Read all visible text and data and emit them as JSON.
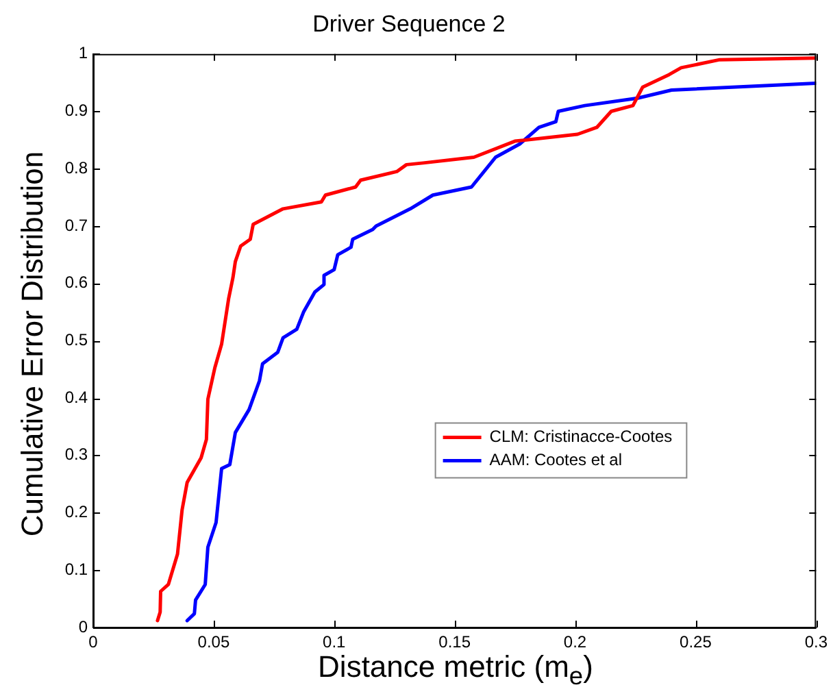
{
  "chart_data": {
    "type": "line",
    "title": "Driver Sequence 2",
    "xlabel": "Distance metric (m$_{e}$)",
    "ylabel": "Cumulative Error Distribution",
    "xlim": [
      0,
      0.3
    ],
    "xticks": [
      0,
      0.05,
      0.1,
      0.15,
      0.2,
      0.25,
      0.3
    ],
    "ylim": [
      0,
      1
    ],
    "yticks": [
      0,
      0.1,
      0.2,
      0.3,
      0.4,
      0.5,
      0.6,
      0.7,
      0.8,
      0.9,
      1
    ],
    "grid": false,
    "legend": "right",
    "marker": "none",
    "line_style": "solid",
    "series": [
      {
        "name": "CLM: Cristinacce-Cootes",
        "color": "#ff0000",
        "x": [
          0.0267,
          0.0278,
          0.028,
          0.0312,
          0.035,
          0.0369,
          0.039,
          0.0448,
          0.047,
          0.0476,
          0.0505,
          0.0533,
          0.0562,
          0.058,
          0.059,
          0.0612,
          0.0652,
          0.0664,
          0.0788,
          0.0947,
          0.0964,
          0.1089,
          0.111,
          0.126,
          0.13,
          0.137,
          0.158,
          0.175,
          0.201,
          0.209,
          0.215,
          0.224,
          0.228,
          0.239,
          0.244,
          0.26,
          0.3
        ],
        "values": [
          0.012,
          0.027,
          0.063,
          0.075,
          0.128,
          0.205,
          0.253,
          0.296,
          0.328,
          0.398,
          0.453,
          0.494,
          0.573,
          0.61,
          0.638,
          0.665,
          0.677,
          0.703,
          0.73,
          0.742,
          0.754,
          0.768,
          0.78,
          0.795,
          0.807,
          0.81,
          0.82,
          0.848,
          0.86,
          0.872,
          0.9,
          0.91,
          0.942,
          0.964,
          0.976,
          0.99,
          0.993
        ]
      },
      {
        "name": "AAM: Cootes et al",
        "color": "#0000ff",
        "x": [
          0.039,
          0.042,
          0.0425,
          0.0465,
          0.0476,
          0.051,
          0.0533,
          0.0567,
          0.059,
          0.0647,
          0.069,
          0.0703,
          0.0766,
          0.0788,
          0.0845,
          0.0873,
          0.092,
          0.0958,
          0.0958,
          0.1,
          0.1015,
          0.107,
          0.1077,
          0.116,
          0.1174,
          0.1316,
          0.141,
          0.157,
          0.167,
          0.177,
          0.185,
          0.192,
          0.193,
          0.204,
          0.226,
          0.24,
          0.3
        ],
        "values": [
          0.012,
          0.024,
          0.048,
          0.075,
          0.14,
          0.183,
          0.277,
          0.284,
          0.34,
          0.38,
          0.43,
          0.46,
          0.48,
          0.505,
          0.52,
          0.55,
          0.585,
          0.598,
          0.614,
          0.624,
          0.65,
          0.663,
          0.677,
          0.694,
          0.7,
          0.73,
          0.754,
          0.768,
          0.82,
          0.843,
          0.872,
          0.882,
          0.9,
          0.91,
          0.923,
          0.937,
          0.949
        ]
      }
    ]
  }
}
